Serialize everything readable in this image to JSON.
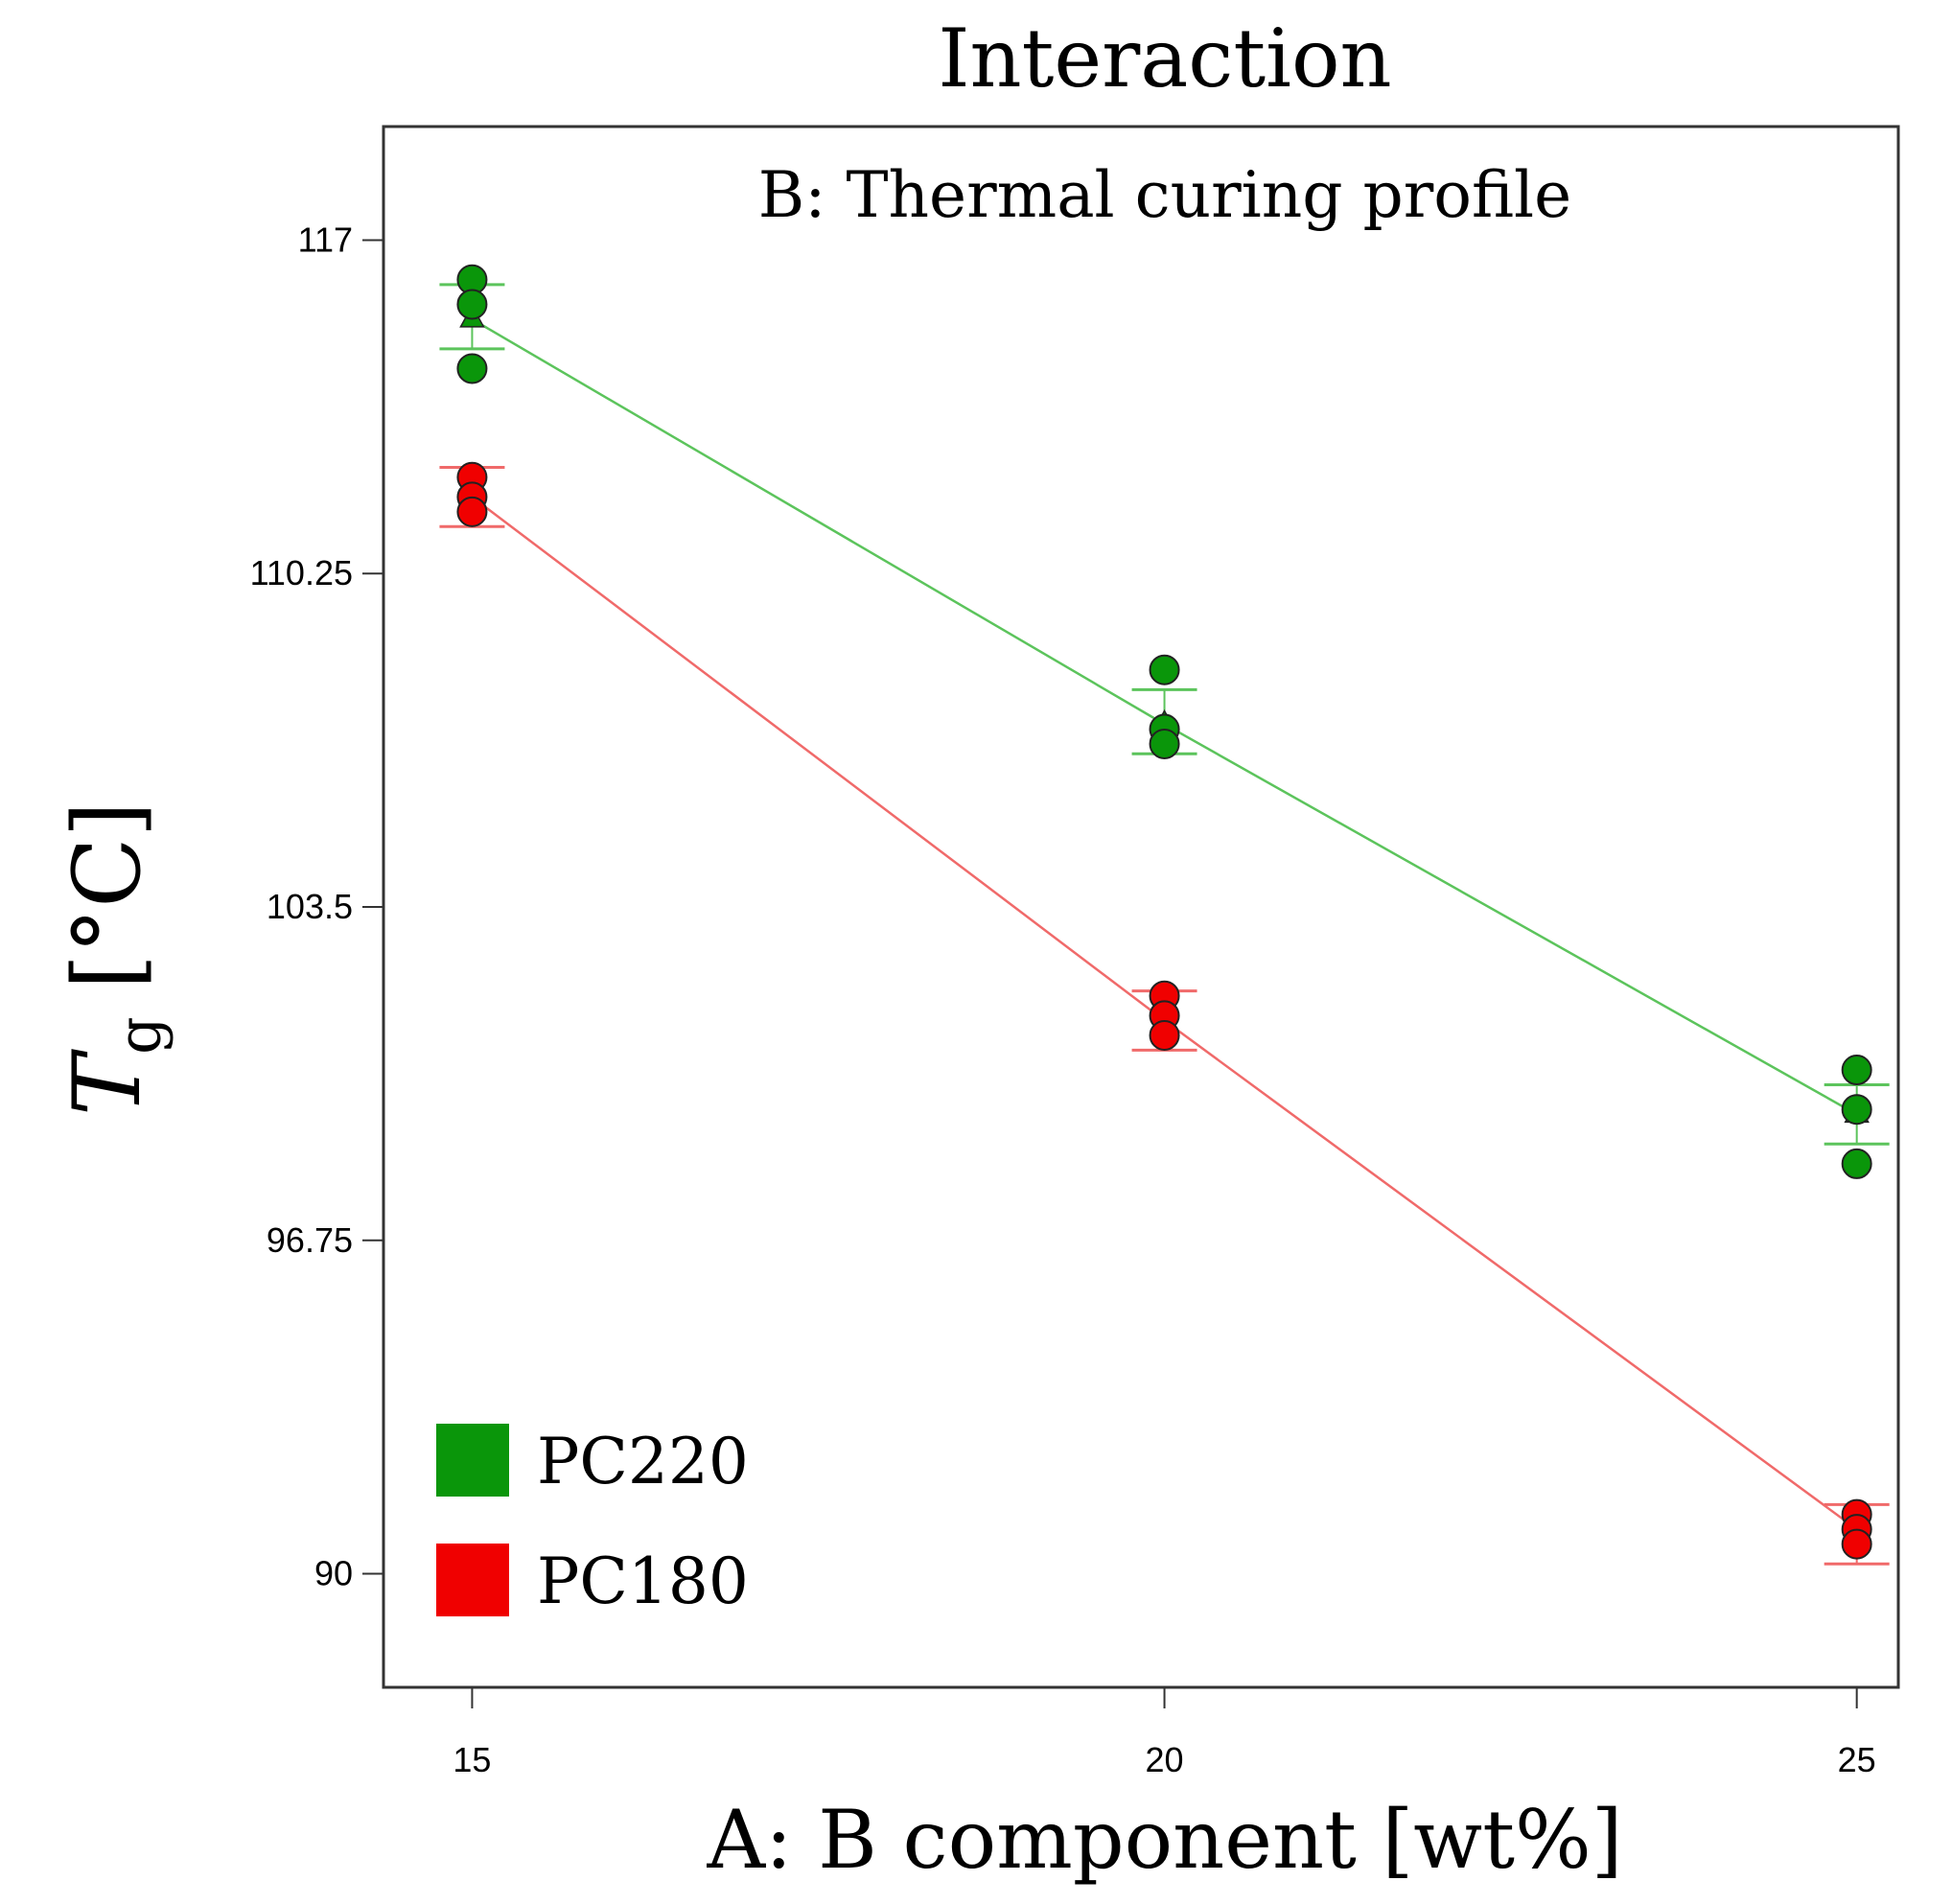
{
  "chart_data": {
    "type": "line",
    "title": "Interaction",
    "subtitle": "B: Thermal curing profile",
    "xlabel": "A: B component [wt%]",
    "ylabel_main": "T",
    "ylabel_sub": "g",
    "ylabel_unit": "[°C]",
    "x_ticks": [
      "15",
      "20",
      "25"
    ],
    "y_ticks": [
      "90",
      "96.75",
      "103.5",
      "110.25",
      "117"
    ],
    "xlim": [
      14.36,
      25.3
    ],
    "ylim": [
      87.7,
      119.3
    ],
    "legend_position": "bottom-left",
    "series": [
      {
        "name": "PC220",
        "color": "#0a960a",
        "line_color": "#5cc45c",
        "x": [
          15,
          20,
          25
        ],
        "fit": [
          115.4,
          107.2,
          99.3
        ],
        "ci": [
          [
            114.8,
            116.1
          ],
          [
            106.6,
            107.9
          ],
          [
            98.7,
            99.9
          ]
        ],
        "points": [
          [
            15,
            116.2
          ],
          [
            15,
            115.7
          ],
          [
            15,
            114.4
          ],
          [
            20,
            108.3
          ],
          [
            20,
            107.1
          ],
          [
            20,
            106.8
          ],
          [
            25,
            100.2
          ],
          [
            25,
            99.4
          ],
          [
            25,
            98.3
          ]
        ]
      },
      {
        "name": "PC180",
        "color": "#f00000",
        "line_color": "#f06a6a",
        "x": [
          15,
          20,
          25
        ],
        "fit": [
          111.8,
          101.2,
          90.9
        ],
        "ci": [
          [
            111.2,
            112.4
          ],
          [
            100.6,
            101.8
          ],
          [
            90.2,
            91.4
          ]
        ],
        "points": [
          [
            15,
            112.2
          ],
          [
            15,
            111.8
          ],
          [
            15,
            111.5
          ],
          [
            20,
            101.7
          ],
          [
            20,
            101.3
          ],
          [
            20,
            100.9
          ],
          [
            25,
            91.2
          ],
          [
            25,
            90.9
          ],
          [
            25,
            90.6
          ]
        ]
      }
    ]
  }
}
